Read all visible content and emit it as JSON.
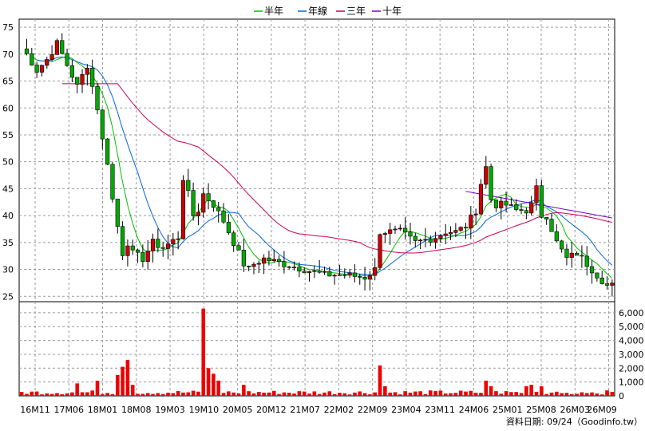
{
  "chart_data": {
    "type": "candlestick",
    "legend": [
      {
        "label": "半年",
        "color": "#00c000"
      },
      {
        "label": "年線",
        "color": "#0066dd"
      },
      {
        "label": "三年",
        "color": "#cc0055"
      },
      {
        "label": "十年",
        "color": "#7a00cc"
      }
    ],
    "price_axis": {
      "ylim": [
        24,
        76.5
      ],
      "ticks": [
        25,
        30,
        35,
        40,
        45,
        50,
        55,
        60,
        65,
        70,
        75
      ],
      "position": "left"
    },
    "volume_axis": {
      "ylim": [
        0,
        6800
      ],
      "ticks": [
        0,
        1000,
        2000,
        3000,
        4000,
        5000,
        6000
      ],
      "tick_labels": [
        "0",
        "1,000",
        "2,000",
        "3,000",
        "4,000",
        "5,000",
        "6,000"
      ],
      "position": "right"
    },
    "x_tick_labels": [
      "16M11",
      "17M06",
      "18M01",
      "18M08",
      "19M03",
      "19M10",
      "20M05",
      "20M12",
      "21M07",
      "22M02",
      "22M09",
      "23M04",
      "23M11",
      "24M06",
      "25M01",
      "25M08",
      "26M03",
      "26M09"
    ],
    "up_color": "#cc0000",
    "down_color": "#00aa00",
    "grid": true,
    "price_anchors": [
      [
        0,
        71
      ],
      [
        1,
        70
      ],
      [
        3,
        67
      ],
      [
        5,
        69
      ],
      [
        7,
        72
      ],
      [
        9,
        68
      ],
      [
        11,
        64
      ],
      [
        13,
        68
      ],
      [
        14,
        64
      ],
      [
        15,
        60
      ],
      [
        16,
        54
      ],
      [
        17,
        50
      ],
      [
        18,
        43
      ],
      [
        19,
        38
      ],
      [
        20,
        33
      ],
      [
        21,
        35
      ],
      [
        22,
        33
      ],
      [
        24,
        32
      ],
      [
        26,
        35
      ],
      [
        28,
        34
      ],
      [
        31,
        36
      ],
      [
        32,
        47
      ],
      [
        33,
        44
      ],
      [
        34,
        40
      ],
      [
        35,
        41
      ],
      [
        36,
        44
      ],
      [
        38,
        42
      ],
      [
        40,
        39
      ],
      [
        42,
        35
      ],
      [
        44,
        31
      ],
      [
        45,
        30
      ],
      [
        46,
        31
      ],
      [
        48,
        32
      ],
      [
        52,
        31
      ],
      [
        56,
        30
      ],
      [
        60,
        29
      ],
      [
        64,
        29
      ],
      [
        68,
        28.5
      ],
      [
        70,
        30
      ],
      [
        71,
        37
      ],
      [
        73,
        37
      ],
      [
        75,
        37
      ],
      [
        78,
        35
      ],
      [
        80,
        35.5
      ],
      [
        82,
        36
      ],
      [
        84,
        37
      ],
      [
        86,
        37
      ],
      [
        88,
        38
      ],
      [
        90,
        41
      ],
      [
        91,
        46
      ],
      [
        92,
        49
      ],
      [
        93,
        43
      ],
      [
        94,
        42
      ],
      [
        96,
        42
      ],
      [
        98,
        41
      ],
      [
        100,
        41
      ],
      [
        101,
        42
      ],
      [
        102,
        45
      ],
      [
        103,
        40
      ],
      [
        104,
        40
      ],
      [
        106,
        35
      ],
      [
        108,
        32
      ],
      [
        110,
        33
      ],
      [
        111,
        32
      ],
      [
        113,
        30
      ],
      [
        115,
        28
      ],
      [
        116,
        27
      ]
    ],
    "volume_spikes": [
      [
        11,
        900
      ],
      [
        15,
        1100
      ],
      [
        19,
        1500
      ],
      [
        20,
        2100
      ],
      [
        21,
        2600
      ],
      [
        22,
        800
      ],
      [
        36,
        6300
      ],
      [
        37,
        2000
      ],
      [
        38,
        1600
      ],
      [
        39,
        1100
      ],
      [
        44,
        800
      ],
      [
        71,
        2200
      ],
      [
        72,
        700
      ],
      [
        92,
        1100
      ],
      [
        93,
        700
      ],
      [
        100,
        700
      ],
      [
        101,
        800
      ],
      [
        103,
        700
      ],
      [
        106,
        300
      ],
      [
        107,
        200
      ],
      [
        110,
        150
      ],
      [
        112,
        200
      ],
      [
        113,
        250
      ]
    ],
    "volume_default": 230
  },
  "credit": "資料日期: 09/24（Goodinfo.tw）"
}
